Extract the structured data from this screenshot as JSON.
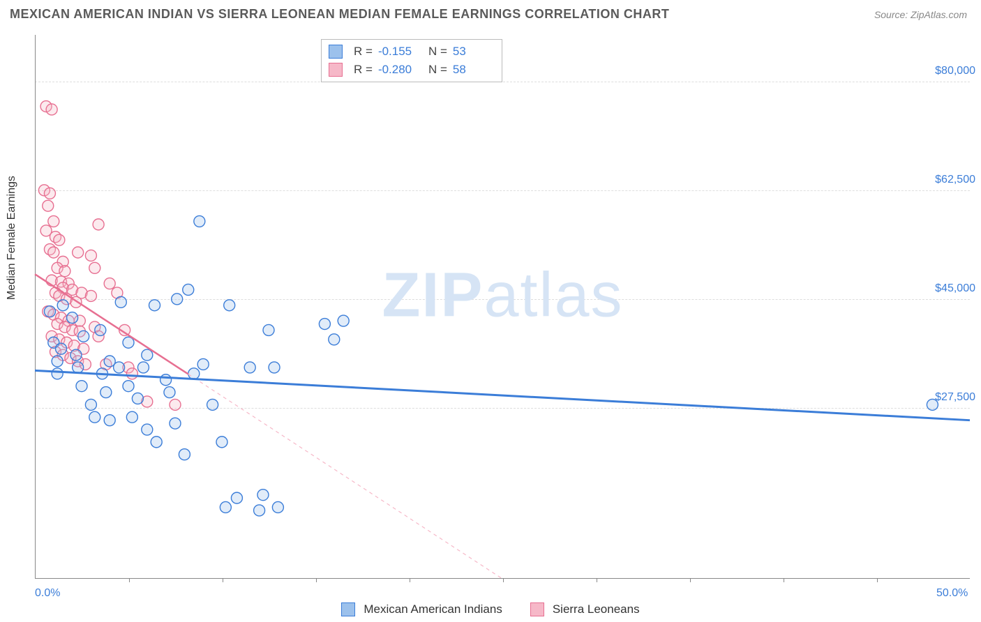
{
  "header": {
    "title": "MEXICAN AMERICAN INDIAN VS SIERRA LEONEAN MEDIAN FEMALE EARNINGS CORRELATION CHART",
    "source": "Source: ZipAtlas.com"
  },
  "watermark": {
    "zip": "ZIP",
    "atlas": "atlas"
  },
  "chart": {
    "type": "scatter",
    "background_color": "#ffffff",
    "grid_color": "#dddddd",
    "axis_color": "#888888",
    "text_color": "#333333",
    "value_color": "#3b7dd8",
    "ylabel": "Median Female Earnings",
    "ylabel_fontsize": 16,
    "ylim": [
      0,
      87500
    ],
    "yticks": [
      {
        "val": 27500,
        "label": "$27,500"
      },
      {
        "val": 45000,
        "label": "$45,000"
      },
      {
        "val": 62500,
        "label": "$62,500"
      },
      {
        "val": 80000,
        "label": "$80,000"
      }
    ],
    "xlim": [
      0,
      50
    ],
    "xticks_minor": [
      5,
      10,
      15,
      20,
      25,
      30,
      35,
      40,
      45
    ],
    "xlabels": [
      {
        "val": 0,
        "label": "0.0%"
      },
      {
        "val": 50,
        "label": "50.0%"
      }
    ],
    "marker_radius": 8,
    "marker_stroke_width": 1.4,
    "marker_fill_opacity": 0.3,
    "series_blue": {
      "name": "Mexican American Indians",
      "stroke": "#3b7dd8",
      "fill": "#9cc1ec",
      "R": "-0.155",
      "N": "53",
      "trend": {
        "x1": 0,
        "y1": 33500,
        "x2": 50,
        "y2": 25500,
        "solid_until_x": 50,
        "width": 3
      },
      "points": [
        [
          0.8,
          43000
        ],
        [
          1.0,
          38000
        ],
        [
          1.2,
          35000
        ],
        [
          1.2,
          33000
        ],
        [
          1.4,
          37000
        ],
        [
          1.5,
          44000
        ],
        [
          2.0,
          42000
        ],
        [
          2.2,
          36000
        ],
        [
          2.3,
          34000
        ],
        [
          2.5,
          31000
        ],
        [
          2.6,
          39000
        ],
        [
          3.0,
          28000
        ],
        [
          3.2,
          26000
        ],
        [
          3.5,
          40000
        ],
        [
          3.6,
          33000
        ],
        [
          3.8,
          30000
        ],
        [
          4.0,
          35000
        ],
        [
          4.0,
          25500
        ],
        [
          4.5,
          34000
        ],
        [
          4.6,
          44500
        ],
        [
          5.0,
          31000
        ],
        [
          5.0,
          38000
        ],
        [
          5.2,
          26000
        ],
        [
          5.5,
          29000
        ],
        [
          5.8,
          34000
        ],
        [
          6.0,
          24000
        ],
        [
          6.0,
          36000
        ],
        [
          6.4,
          44000
        ],
        [
          6.5,
          22000
        ],
        [
          7.0,
          32000
        ],
        [
          7.2,
          30000
        ],
        [
          7.5,
          25000
        ],
        [
          7.6,
          45000
        ],
        [
          8.0,
          20000
        ],
        [
          8.2,
          46500
        ],
        [
          8.5,
          33000
        ],
        [
          8.8,
          57500
        ],
        [
          9.0,
          34500
        ],
        [
          9.5,
          28000
        ],
        [
          10.0,
          22000
        ],
        [
          10.2,
          11500
        ],
        [
          10.4,
          44000
        ],
        [
          10.8,
          13000
        ],
        [
          11.5,
          34000
        ],
        [
          12.0,
          11000
        ],
        [
          12.2,
          13500
        ],
        [
          12.5,
          40000
        ],
        [
          12.8,
          34000
        ],
        [
          13.0,
          11500
        ],
        [
          15.5,
          41000
        ],
        [
          16.5,
          41500
        ],
        [
          16.0,
          38500
        ],
        [
          48.0,
          28000
        ]
      ]
    },
    "series_pink": {
      "name": "Sierra Leoneans",
      "stroke": "#e76f91",
      "fill": "#f6b8c8",
      "R": "-0.280",
      "N": "58",
      "trend": {
        "x1": 0,
        "y1": 49000,
        "x2": 25,
        "y2": 0,
        "solid_until_x": 8.2,
        "width": 2.5
      },
      "points": [
        [
          0.6,
          76000
        ],
        [
          0.9,
          75500
        ],
        [
          0.5,
          62500
        ],
        [
          0.8,
          62000
        ],
        [
          0.7,
          60000
        ],
        [
          1.0,
          57500
        ],
        [
          0.6,
          56000
        ],
        [
          1.1,
          55000
        ],
        [
          1.3,
          54500
        ],
        [
          0.8,
          53000
        ],
        [
          1.0,
          52500
        ],
        [
          1.5,
          51000
        ],
        [
          1.2,
          50000
        ],
        [
          1.6,
          49500
        ],
        [
          0.9,
          48000
        ],
        [
          1.4,
          47800
        ],
        [
          1.8,
          47500
        ],
        [
          1.5,
          46800
        ],
        [
          2.0,
          46500
        ],
        [
          1.1,
          46000
        ],
        [
          1.3,
          45500
        ],
        [
          1.7,
          45000
        ],
        [
          2.2,
          44500
        ],
        [
          2.3,
          52500
        ],
        [
          0.7,
          43000
        ],
        [
          1.0,
          42500
        ],
        [
          1.4,
          42000
        ],
        [
          1.8,
          41500
        ],
        [
          2.4,
          41500
        ],
        [
          2.5,
          46000
        ],
        [
          1.2,
          41000
        ],
        [
          1.6,
          40500
        ],
        [
          2.0,
          40000
        ],
        [
          2.4,
          39800
        ],
        [
          0.9,
          39000
        ],
        [
          1.3,
          38500
        ],
        [
          1.7,
          38000
        ],
        [
          2.1,
          37500
        ],
        [
          2.6,
          37000
        ],
        [
          3.0,
          45500
        ],
        [
          3.2,
          50000
        ],
        [
          3.4,
          57000
        ],
        [
          1.1,
          36500
        ],
        [
          1.5,
          36000
        ],
        [
          1.9,
          35500
        ],
        [
          2.3,
          35000
        ],
        [
          2.7,
          34500
        ],
        [
          3.0,
          52000
        ],
        [
          3.2,
          40500
        ],
        [
          3.4,
          39000
        ],
        [
          3.8,
          34500
        ],
        [
          4.0,
          47500
        ],
        [
          4.4,
          46000
        ],
        [
          4.8,
          40000
        ],
        [
          5.0,
          34000
        ],
        [
          5.2,
          33000
        ],
        [
          6.0,
          28500
        ],
        [
          7.5,
          28000
        ]
      ]
    },
    "stats_legend": {
      "R_label": "R =",
      "N_label": "N ="
    }
  },
  "bottom_legend": {
    "items": [
      {
        "swatch_fill": "#9cc1ec",
        "swatch_stroke": "#3b7dd8",
        "label": "Mexican American Indians"
      },
      {
        "swatch_fill": "#f6b8c8",
        "swatch_stroke": "#e76f91",
        "label": "Sierra Leoneans"
      }
    ]
  }
}
